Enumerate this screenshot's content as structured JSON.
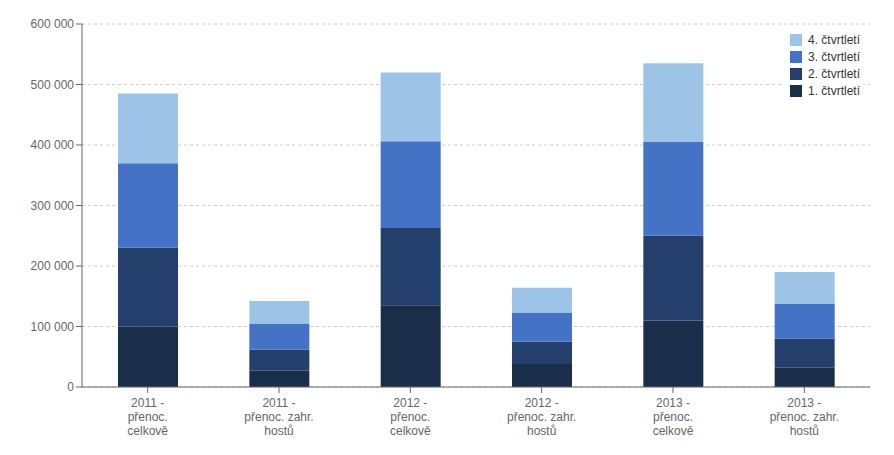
{
  "chart_data": {
    "type": "bar",
    "stacked": true,
    "categories": [
      "2011 -\npřenoc.\ncelkově",
      "2011 -\npřenoc. zahr.\nhostů",
      "2012 -\npřenoc.\ncelkově",
      "2012 -\npřenoc. zahr.\nhostů",
      "2013 -\npřenoc.\ncelkově",
      "2013 -\npřenoc. zahr.\nhostů"
    ],
    "series": [
      {
        "name": "1. čtvrtletí",
        "color": "#1A2E4A",
        "values": [
          100000,
          27000,
          135000,
          38000,
          110000,
          32000
        ]
      },
      {
        "name": "2. čtvrtletí",
        "color": "#243F6B",
        "values": [
          130000,
          35000,
          128000,
          37000,
          140000,
          48000
        ]
      },
      {
        "name": "3. čtvrtletí",
        "color": "#4472C4",
        "values": [
          140000,
          43000,
          143000,
          48000,
          155000,
          58000
        ]
      },
      {
        "name": "4. čtvrtletí",
        "color": "#9DC3E6",
        "values": [
          115000,
          37000,
          114000,
          41000,
          130000,
          52000
        ]
      }
    ],
    "ylim": [
      0,
      600000
    ],
    "yticks": [
      0,
      {
        "value": 100000,
        "label": "100 000"
      },
      {
        "value": 200000,
        "label": "200 000"
      },
      {
        "value": 300000,
        "label": "300 000"
      },
      {
        "value": 400000,
        "label": "400 000"
      },
      {
        "value": 500000,
        "label": "500 000"
      },
      {
        "value": 600000,
        "label": "600 000"
      }
    ],
    "grid": true,
    "legend": "upper right"
  }
}
